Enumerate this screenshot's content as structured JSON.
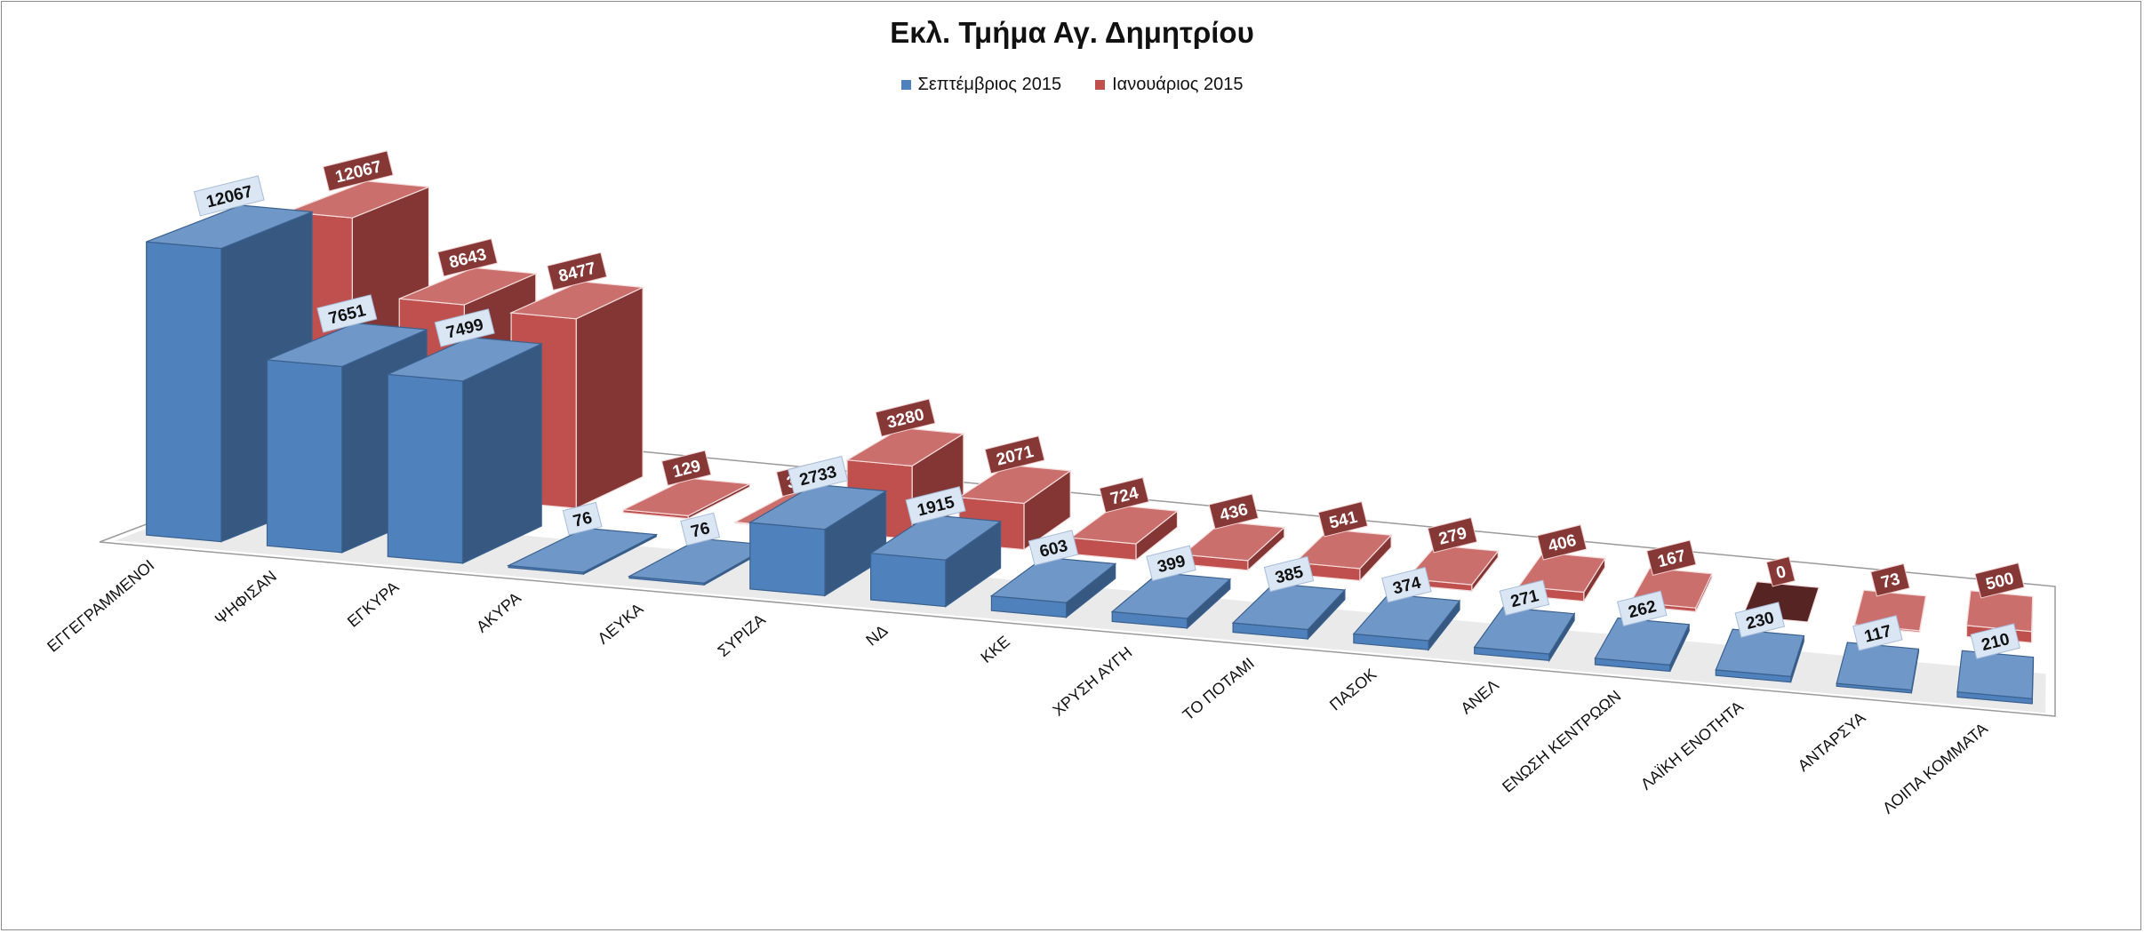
{
  "chart_data": {
    "type": "bar",
    "title": "Εκλ. Τμήμα Αγ. Δημητρίου",
    "categories": [
      "ΕΓΓΕΓΡΑΜΜΕΝΟΙ",
      "ΨΗΦΙΣΑΝ",
      "ΕΓΚΥΡΑ",
      "ΑΚΥΡΑ",
      "ΛΕΥΚΑ",
      "ΣΥΡΙΖΑ",
      "ΝΔ",
      "ΚΚΕ",
      "ΧΡΥΣΗ ΑΥΓΗ",
      "ΤΟ ΠΟΤΑΜΙ",
      "ΠΑΣΟΚ",
      "ΑΝΕΛ",
      "ΕΝΩΣΗ ΚΕΝΤΡΩΩΝ",
      "ΛΑΪΚΗ ΕΝΟΤΗΤΑ",
      "ΑΝΤΑΡΣΥΑ",
      "ΛΟΙΠΑ ΚΟΜΜΑΤΑ"
    ],
    "series": [
      {
        "name": "Σεπτέμβριος 2015",
        "color": "#4f81bd",
        "values": [
          12067,
          7651,
          7499,
          76,
          76,
          2733,
          1915,
          603,
          399,
          385,
          374,
          271,
          262,
          230,
          117,
          210
        ]
      },
      {
        "name": "Ιανουάριος 2015",
        "color": "#c0504d",
        "values": [
          12067,
          8643,
          8477,
          129,
          37,
          3280,
          2071,
          724,
          436,
          541,
          279,
          406,
          167,
          0,
          73,
          500
        ]
      }
    ],
    "legend_position": "top-center",
    "grid": false
  }
}
